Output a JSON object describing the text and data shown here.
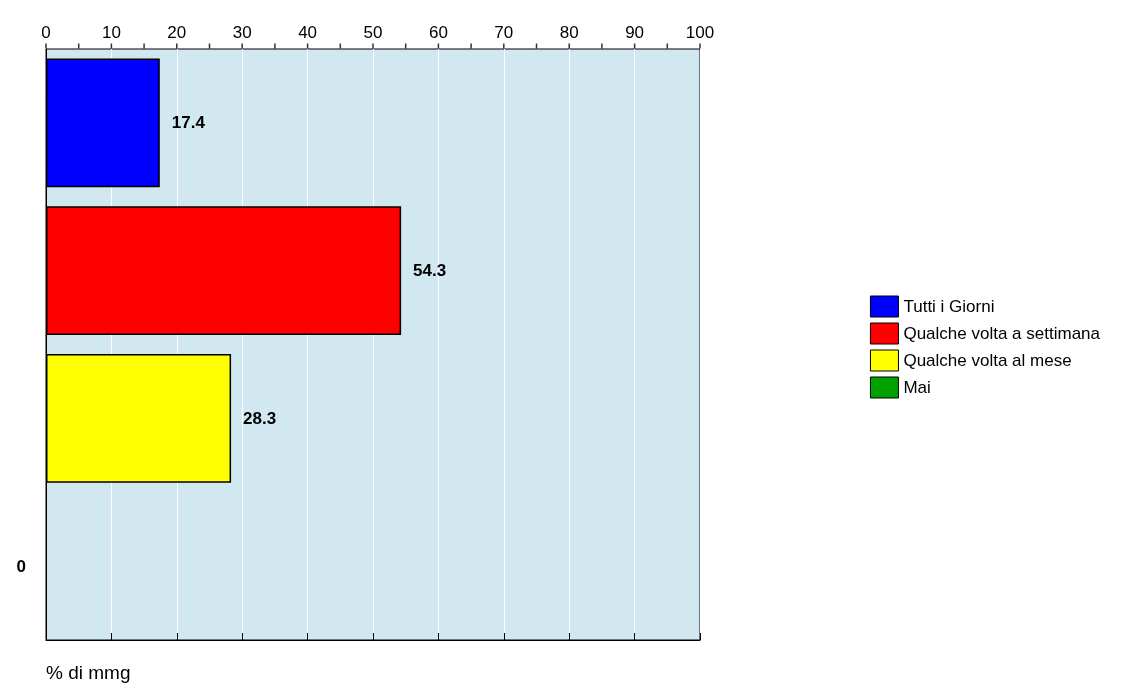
{
  "chart_data": {
    "type": "bar",
    "orientation": "horizontal",
    "xlabel": "% di mmg",
    "categories": [
      null,
      null,
      null,
      null
    ],
    "series": [
      {
        "name": "Tutti i Giorni",
        "color": "#0000ff",
        "values": [
          17.4,
          null,
          null,
          null
        ]
      },
      {
        "name": "Qualche volta a settimana",
        "color": "#ff0000",
        "values": [
          null,
          54.3,
          null,
          null
        ]
      },
      {
        "name": "Qualche volta al mese",
        "color": "#ffff00",
        "values": [
          null,
          null,
          28.3,
          null
        ]
      },
      {
        "name": "Mai",
        "color": "#00a000",
        "values": [
          null,
          null,
          null,
          0
        ]
      }
    ],
    "xlim": [
      0,
      100
    ],
    "xticks": [
      0,
      10,
      20,
      30,
      40,
      50,
      60,
      70,
      80,
      90,
      100
    ],
    "grid": "x",
    "legend": "right",
    "data_labels": true
  }
}
